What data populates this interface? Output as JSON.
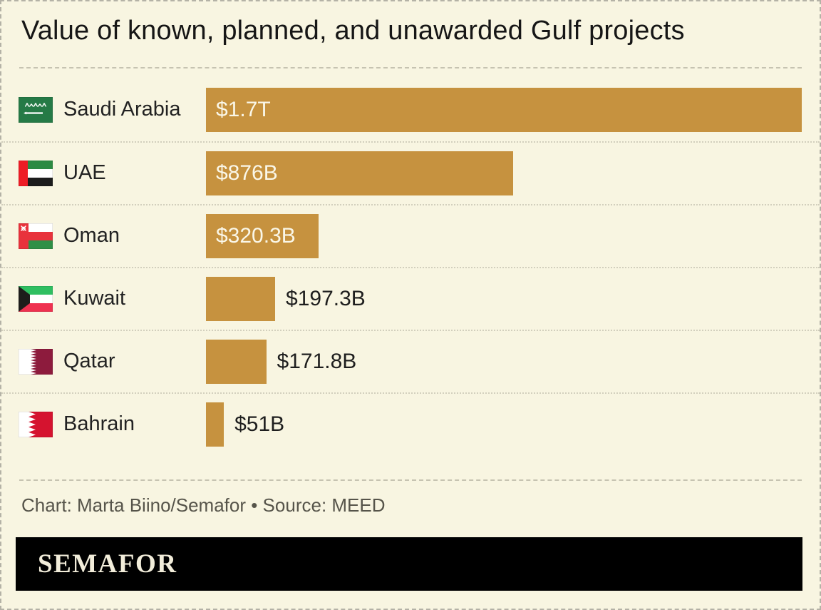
{
  "title": "Value of known, planned, and unawarded Gulf projects",
  "caption": "Chart: Marta Biino/Semafor • Source: MEED",
  "brand": {
    "wordmark": "SEMAFOR"
  },
  "colors": {
    "background": "#f8f5e1",
    "bar": "#c6923f",
    "bar_label_inside": "#faf7e8",
    "text": "#1c1c1c",
    "caption": "#56544a",
    "banner_bg": "#000000",
    "wordmark": "#f2edda"
  },
  "chart_data": {
    "type": "bar",
    "orientation": "horizontal",
    "title": "Value of known, planned, and unawarded Gulf projects",
    "categories": [
      "Saudi Arabia",
      "UAE",
      "Oman",
      "Kuwait",
      "Qatar",
      "Bahrain"
    ],
    "values_usd_billions": [
      1700,
      876,
      320.3,
      197.3,
      171.8,
      51
    ],
    "value_labels": [
      "$1.7T",
      "$876B",
      "$320.3B",
      "$197.3B",
      "$171.8B",
      "$51B"
    ],
    "flags": [
      "saudi-arabia",
      "uae",
      "oman",
      "kuwait",
      "qatar",
      "bahrain"
    ],
    "xlim": [
      0,
      1700
    ],
    "grid": false,
    "legend": false,
    "credit": "Chart: Marta Biino/Semafor",
    "source": "Source: MEED"
  }
}
